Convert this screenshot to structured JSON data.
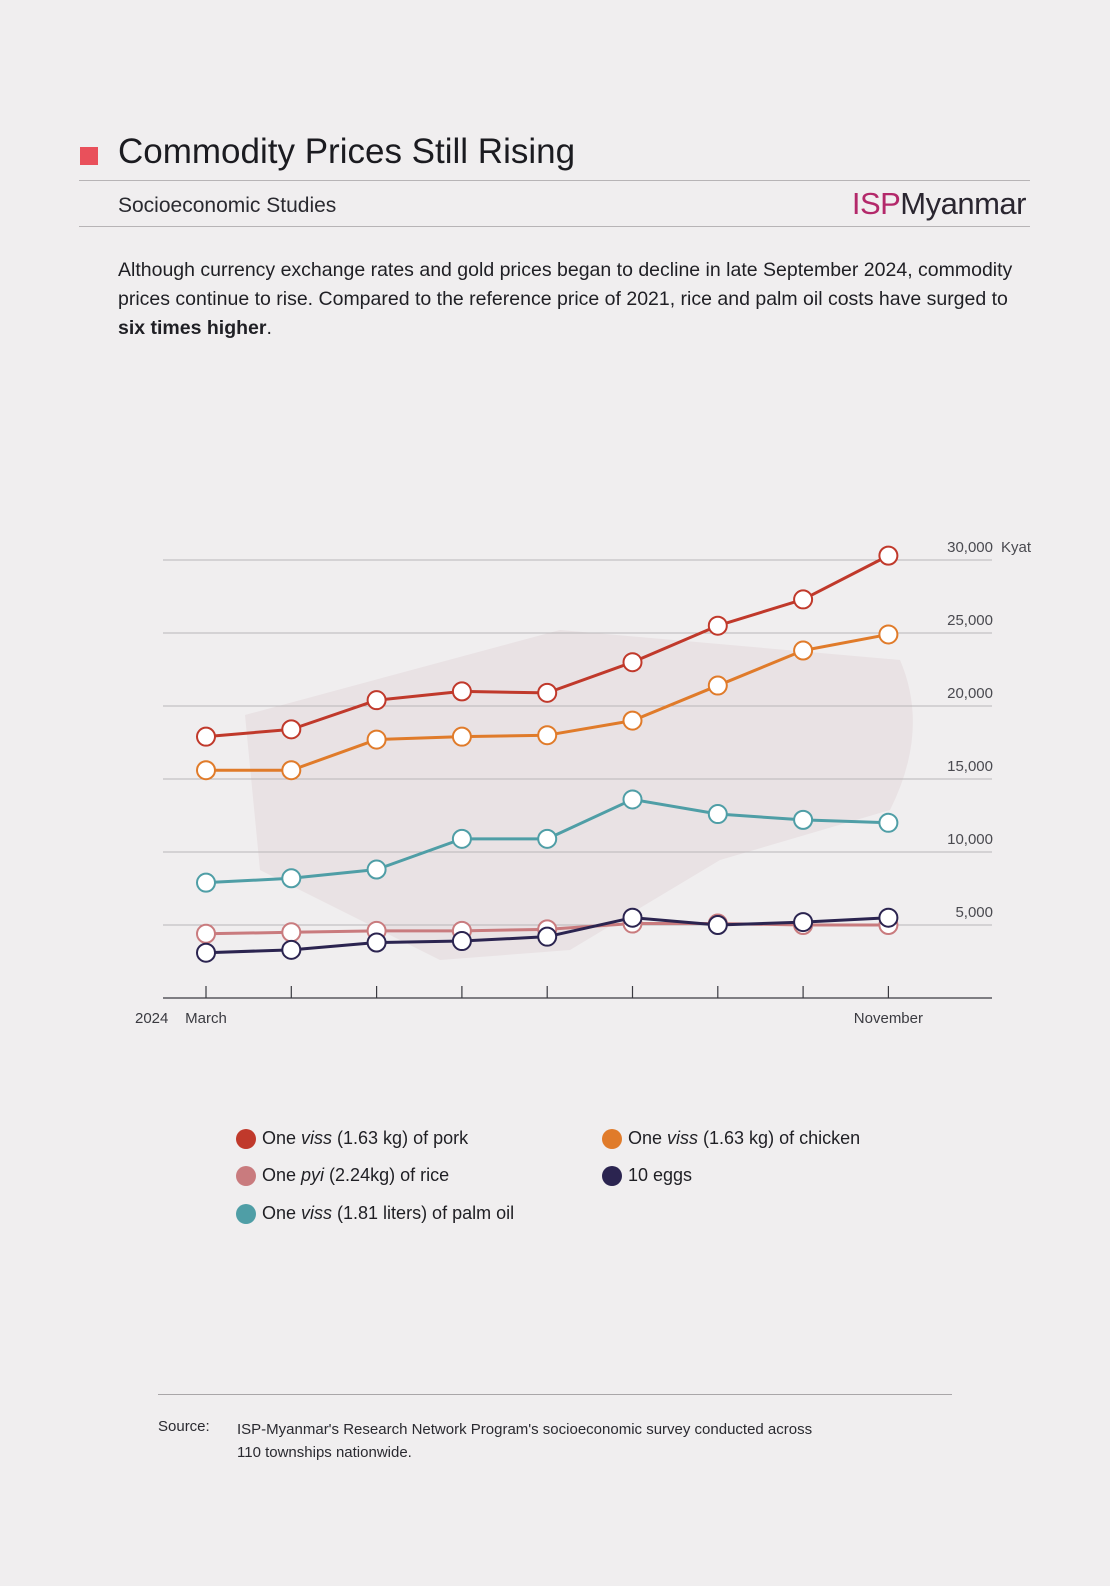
{
  "header": {
    "title": "Commodity Prices Still Rising",
    "subtitle": "Socioeconomic Studies",
    "brand_isp": "ISP",
    "brand_rest": "Myanmar"
  },
  "intro": {
    "part1": "Although currency exchange rates and gold prices began to decline in late September 2024, commodity prices continue to rise. Compared to the reference price of 2021, rice and palm oil costs have surged to ",
    "bold": "six times higher",
    "part2": "."
  },
  "colors": {
    "background": "#f0eeef",
    "accent": "#e9505b",
    "brand": "#b3286a",
    "pork": "#c0392b",
    "chicken": "#e07b2a",
    "palm_oil": "#4f9ea6",
    "rice": "#c97b7e",
    "eggs": "#2b2450"
  },
  "chart_data": {
    "type": "line",
    "x": [
      "March",
      "",
      "",
      "",
      "",
      "",
      "",
      "",
      "November"
    ],
    "x_prefix": "2024",
    "yunit": "Kyat",
    "ylim": [
      0,
      30000
    ],
    "yticks": [
      "5,000",
      "10,000",
      "15,000",
      "20,000",
      "25,000",
      "30,000"
    ],
    "ytick_values": [
      5000,
      10000,
      15000,
      20000,
      25000,
      30000
    ],
    "grid": true,
    "series": [
      {
        "key": "pork",
        "name": "One viss (1.63 kg) of pork",
        "color": "#c0392b",
        "values": [
          17900,
          18400,
          20400,
          21000,
          20900,
          23000,
          25500,
          27300,
          30300
        ]
      },
      {
        "key": "chicken",
        "name": "One viss (1.63 kg) of chicken",
        "color": "#e07b2a",
        "values": [
          15600,
          15600,
          17700,
          17900,
          18000,
          19000,
          21400,
          23800,
          24900
        ]
      },
      {
        "key": "palm_oil",
        "name": "One viss (1.81 liters) of palm oil",
        "color": "#4f9ea6",
        "values": [
          7900,
          8200,
          8800,
          10900,
          10900,
          13600,
          12600,
          12200,
          12000
        ]
      },
      {
        "key": "rice",
        "name": "One pyi (2.24kg) of rice",
        "color": "#c97b7e",
        "values": [
          4400,
          4500,
          4600,
          4600,
          4700,
          5100,
          5100,
          5000,
          5000
        ]
      },
      {
        "key": "eggs",
        "name": "10 eggs",
        "color": "#2b2450",
        "values": [
          3100,
          3300,
          3800,
          3900,
          4200,
          5500,
          5000,
          5200,
          5500
        ]
      }
    ]
  },
  "legend": [
    {
      "pre": "One ",
      "em": "viss",
      "post": " (1.63 kg) of pork",
      "color": "#c0392b"
    },
    {
      "pre": "One ",
      "em": "viss",
      "post": " (1.63 kg) of chicken",
      "color": "#e07b2a"
    },
    {
      "pre": "One ",
      "em": "pyi",
      "post": " (2.24kg) of rice",
      "color": "#c97b7e"
    },
    {
      "pre": "",
      "em": "",
      "post": "10 eggs",
      "color": "#2b2450"
    },
    {
      "pre": "One ",
      "em": "viss",
      "post": " (1.81 liters) of palm oil",
      "color": "#4f9ea6"
    }
  ],
  "footer": {
    "source_label": "Source:",
    "source_line1": "ISP-Myanmar's Research Network Program's socioeconomic survey conducted across",
    "source_line2": "110 townships nationwide."
  }
}
